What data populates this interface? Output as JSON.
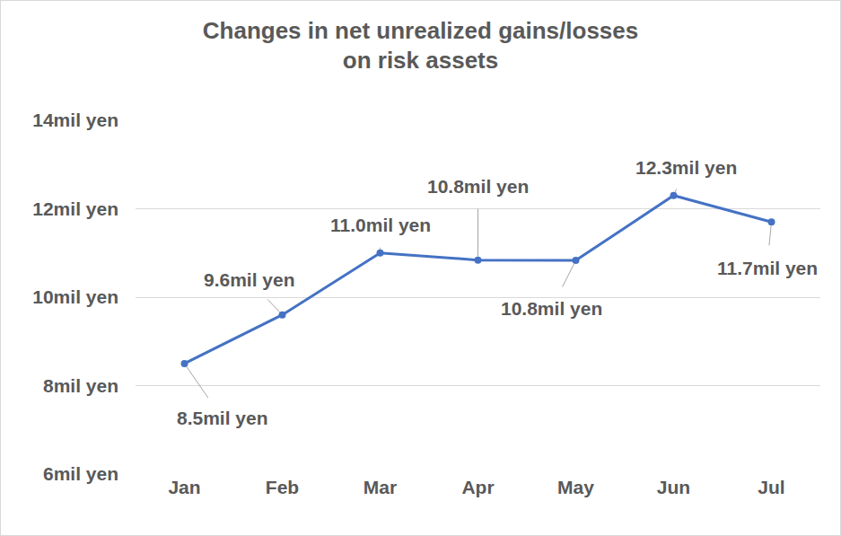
{
  "chart_data": {
    "type": "line",
    "title": "Changes in net unrealized gains/losses on risk assets",
    "categories": [
      "Jan",
      "Feb",
      "Mar",
      "Apr",
      "May",
      "Jun",
      "Jul"
    ],
    "values": [
      8.5,
      9.6,
      11.0,
      10.84,
      10.83,
      12.3,
      11.7
    ],
    "value_labels": [
      "8.5mil yen",
      "9.6mil yen",
      "11.0mil yen",
      "10.8mil yen",
      "10.8mil yen",
      "12.3mil yen",
      "11.7mil yen"
    ],
    "data_labels": true,
    "color": "#4472c4",
    "marker": "circle",
    "line_style": "solid",
    "ylim": [
      6,
      14
    ],
    "yticks": [
      {
        "value": 6,
        "label": "6mil yen"
      },
      {
        "value": 8,
        "label": "8mil yen"
      },
      {
        "value": 10,
        "label": "10mil yen"
      },
      {
        "value": 12,
        "label": "12mil yen"
      },
      {
        "value": 14,
        "label": "14mil yen"
      }
    ],
    "grid": true
  }
}
